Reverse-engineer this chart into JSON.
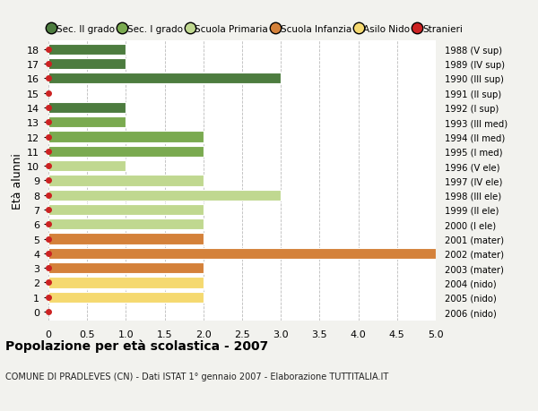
{
  "ages": [
    18,
    17,
    16,
    15,
    14,
    13,
    12,
    11,
    10,
    9,
    8,
    7,
    6,
    5,
    4,
    3,
    2,
    1,
    0
  ],
  "right_labels": [
    "1988 (V sup)",
    "1989 (IV sup)",
    "1990 (III sup)",
    "1991 (II sup)",
    "1992 (I sup)",
    "1993 (III med)",
    "1994 (II med)",
    "1995 (I med)",
    "1996 (V ele)",
    "1997 (IV ele)",
    "1998 (III ele)",
    "1999 (II ele)",
    "2000 (I ele)",
    "2001 (mater)",
    "2002 (mater)",
    "2003 (mater)",
    "2004 (nido)",
    "2005 (nido)",
    "2006 (nido)"
  ],
  "values": [
    1,
    1,
    3,
    0,
    1,
    1,
    2,
    2,
    1,
    2,
    3,
    2,
    2,
    2,
    5,
    2,
    2,
    2,
    0
  ],
  "colors": [
    "#4d7c3f",
    "#4d7c3f",
    "#4d7c3f",
    "#4d7c3f",
    "#4d7c3f",
    "#7aaa50",
    "#7aaa50",
    "#7aaa50",
    "#c0d890",
    "#c0d890",
    "#c0d890",
    "#c0d890",
    "#c0d890",
    "#d4813a",
    "#d4813a",
    "#d4813a",
    "#f5d970",
    "#f5d970",
    "#f5d970"
  ],
  "legend_colors": [
    "#4d7c3f",
    "#7aaa50",
    "#c0d890",
    "#d4813a",
    "#f5d970",
    "#cc2222"
  ],
  "legend_labels": [
    "Sec. II grado",
    "Sec. I grado",
    "Scuola Primaria",
    "Scuola Infanzia",
    "Asilo Nido",
    "Stranieri"
  ],
  "title": "Popolazione per eta scolastica - 2007",
  "title_special": "Popolazione per età scolastica - 2007",
  "subtitle": "COMUNE DI PRADLEVES (CN) - Dati ISTAT 1° gennaio 2007 - Elaborazione TUTTITALIA.IT",
  "ylabel_left": "Età alunni",
  "xlim": [
    0,
    5.0
  ],
  "xticks": [
    0,
    0.5,
    1.0,
    1.5,
    2.0,
    2.5,
    3.0,
    3.5,
    4.0,
    4.5,
    5.0
  ],
  "xtick_labels": [
    "0",
    "0.5",
    "1.0",
    "1.5",
    "2.0",
    "2.5",
    "3.0",
    "3.5",
    "4.0",
    "4.5",
    "5.0"
  ],
  "bg_color": "#f2f2ee",
  "plot_bg": "#ffffff",
  "grid_color": "#bbbbbb",
  "bar_height": 0.75,
  "bar_edgecolor": "white",
  "dot_color": "#cc2222",
  "dot_size": 4
}
